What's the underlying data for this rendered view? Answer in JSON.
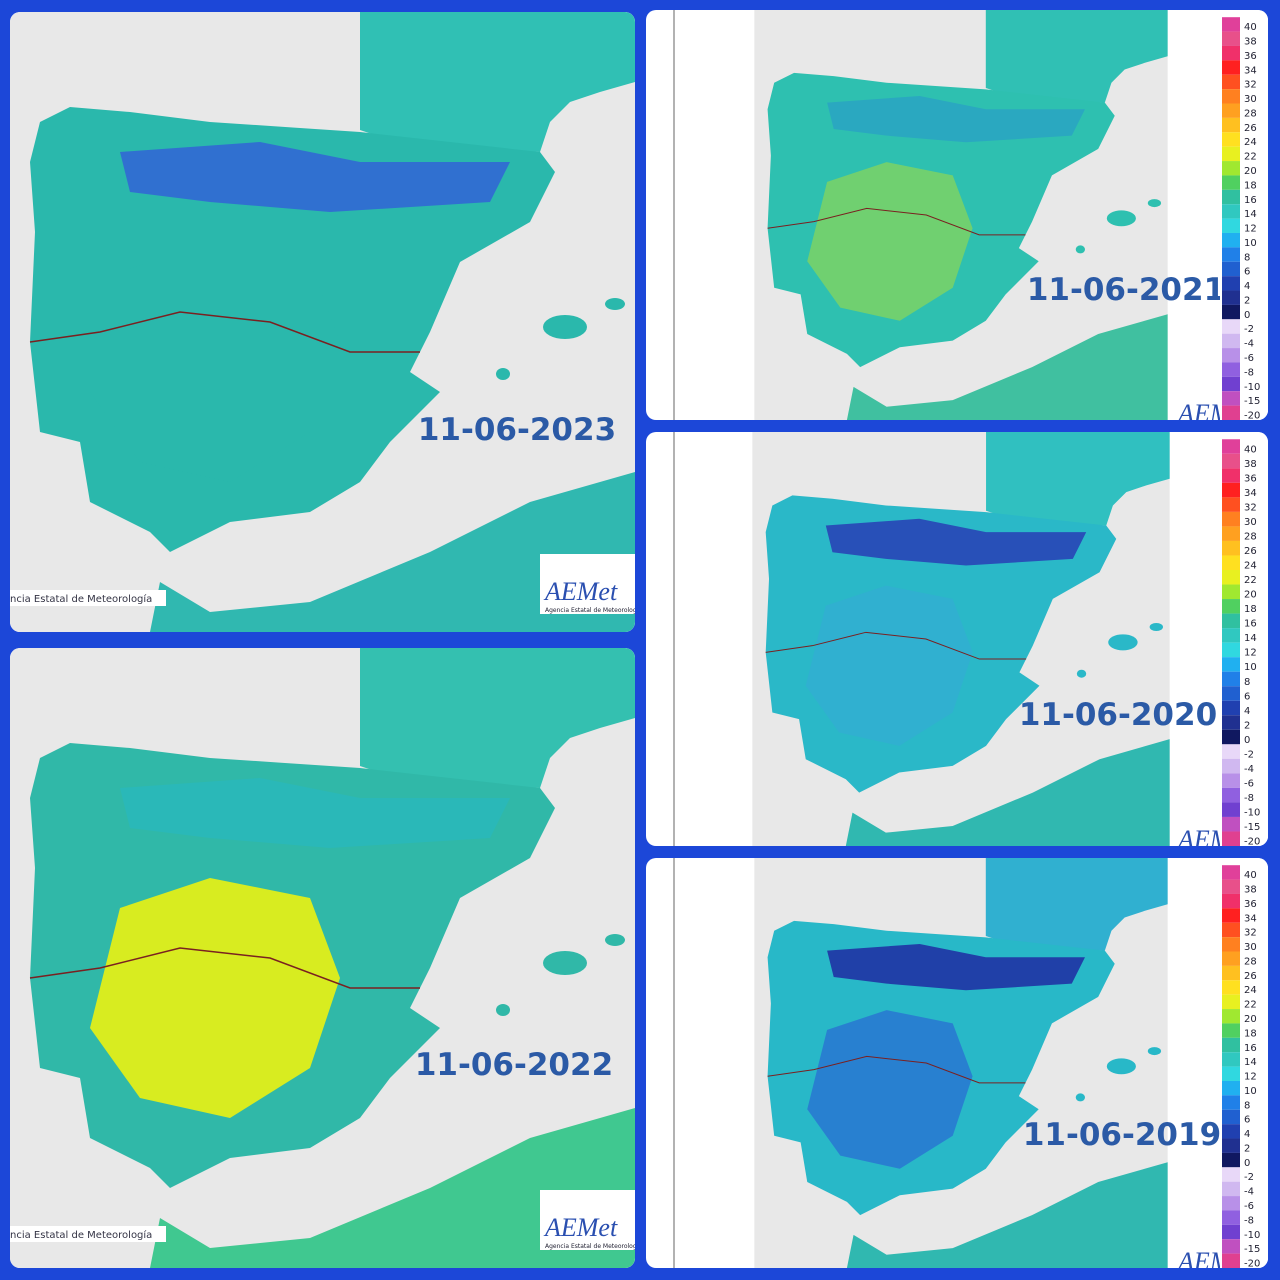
{
  "panels": [
    {
      "date": "11-06-2023"
    },
    {
      "date": "11-06-2022"
    },
    {
      "date": "11-06-2021"
    },
    {
      "date": "11-06-2020"
    },
    {
      "date": "11-06-2019"
    }
  ],
  "scale": {
    "labels": [
      40,
      38,
      36,
      34,
      32,
      30,
      28,
      26,
      24,
      22,
      20,
      18,
      16,
      14,
      12,
      10,
      8,
      6,
      4,
      2,
      0,
      -2,
      -4,
      -6,
      -8,
      -10,
      -15,
      -20
    ],
    "colors": [
      "#e0409a",
      "#e8508a",
      "#f0306a",
      "#ff2020",
      "#ff5020",
      "#ff8020",
      "#ffa020",
      "#ffc020",
      "#ffe020",
      "#e8f020",
      "#a0e830",
      "#50d060",
      "#30c0a0",
      "#30c8c0",
      "#30d8e0",
      "#20b0f0",
      "#2080e8",
      "#2060d0",
      "#2040b0",
      "#203090",
      "#101860",
      "#e8d8f8",
      "#d0b8f0",
      "#b890e8",
      "#9060e0",
      "#7040d0",
      "#c050c0",
      "#e04090"
    ]
  },
  "logo": {
    "text": "AEMet",
    "subtitle": "Agencia Estatal de Meteorología"
  },
  "credit": "ncia Estatal de Meteorología"
}
